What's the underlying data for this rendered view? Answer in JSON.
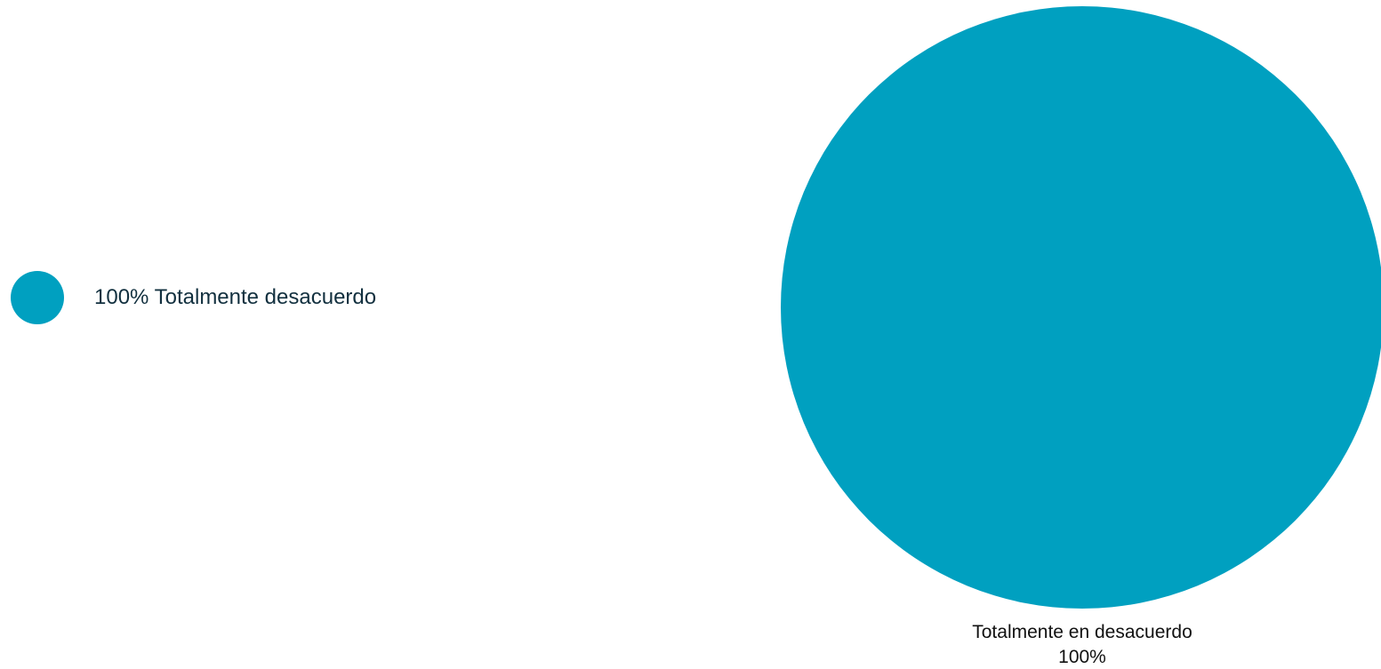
{
  "legend": {
    "items": [
      {
        "text": "100% Totalmente desacuerdo",
        "color": "#00a0c0"
      }
    ]
  },
  "chart_data": {
    "type": "pie",
    "categories": [
      "Totalmente en desacuerdo"
    ],
    "values": [
      100
    ],
    "colors": [
      "#00a0c0"
    ],
    "data_labels": [
      {
        "category": "Totalmente en desacuerdo",
        "percent": "100%"
      }
    ],
    "legend_placement": "left"
  }
}
